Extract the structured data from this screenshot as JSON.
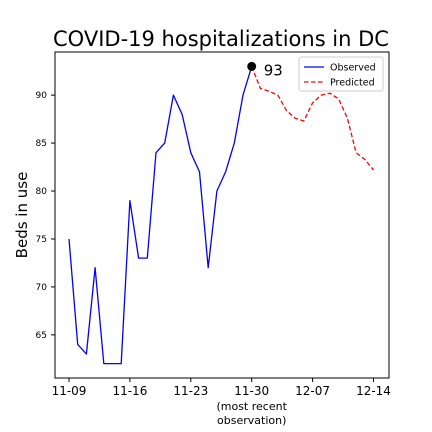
{
  "chart_data": {
    "type": "line",
    "title": "COVID-19 hospitalizations in DC",
    "xlabel": "",
    "ylabel": "Beds in use",
    "x_ticks": [
      "11-09",
      "11-16",
      "11-23",
      "11-30",
      "12-07",
      "12-14"
    ],
    "x_tick_sublabel": {
      "tick": "11-30",
      "lines": [
        "(most recent",
        "observation)"
      ]
    },
    "ylim": [
      60.5,
      94.5
    ],
    "y_ticks": [
      65,
      70,
      75,
      80,
      85,
      90
    ],
    "grid": false,
    "legend": {
      "location": "top-right",
      "entries": [
        "Observed",
        "Predicted"
      ]
    },
    "series": [
      {
        "name": "Observed",
        "color": "#0000ff",
        "style": "solid",
        "x": [
          "11-09",
          "11-10",
          "11-11",
          "11-12",
          "11-13",
          "11-14",
          "11-15",
          "11-16",
          "11-17",
          "11-18",
          "11-19",
          "11-20",
          "11-21",
          "11-22",
          "11-23",
          "11-24",
          "11-25",
          "11-26",
          "11-27",
          "11-28",
          "11-29",
          "11-30"
        ],
        "values": [
          75,
          64,
          63,
          72,
          62,
          62,
          62,
          79,
          73,
          73,
          84,
          85,
          90,
          88,
          84,
          82,
          72,
          80,
          82,
          85,
          90,
          93
        ]
      },
      {
        "name": "Predicted",
        "color": "#ff0000",
        "style": "dashed",
        "x": [
          "11-30",
          "12-01",
          "12-02",
          "12-03",
          "12-04",
          "12-05",
          "12-06",
          "12-07",
          "12-08",
          "12-09",
          "12-10",
          "12-11",
          "12-12",
          "12-13",
          "12-14"
        ],
        "values": [
          93,
          90.7,
          90.4,
          90,
          88.4,
          87.6,
          87.3,
          89.2,
          90,
          90.2,
          89.6,
          87.6,
          84,
          83.3,
          82.2
        ]
      }
    ],
    "annotation": {
      "x": "11-30",
      "y": 93,
      "text": "93",
      "marker_color": "#000000"
    }
  }
}
